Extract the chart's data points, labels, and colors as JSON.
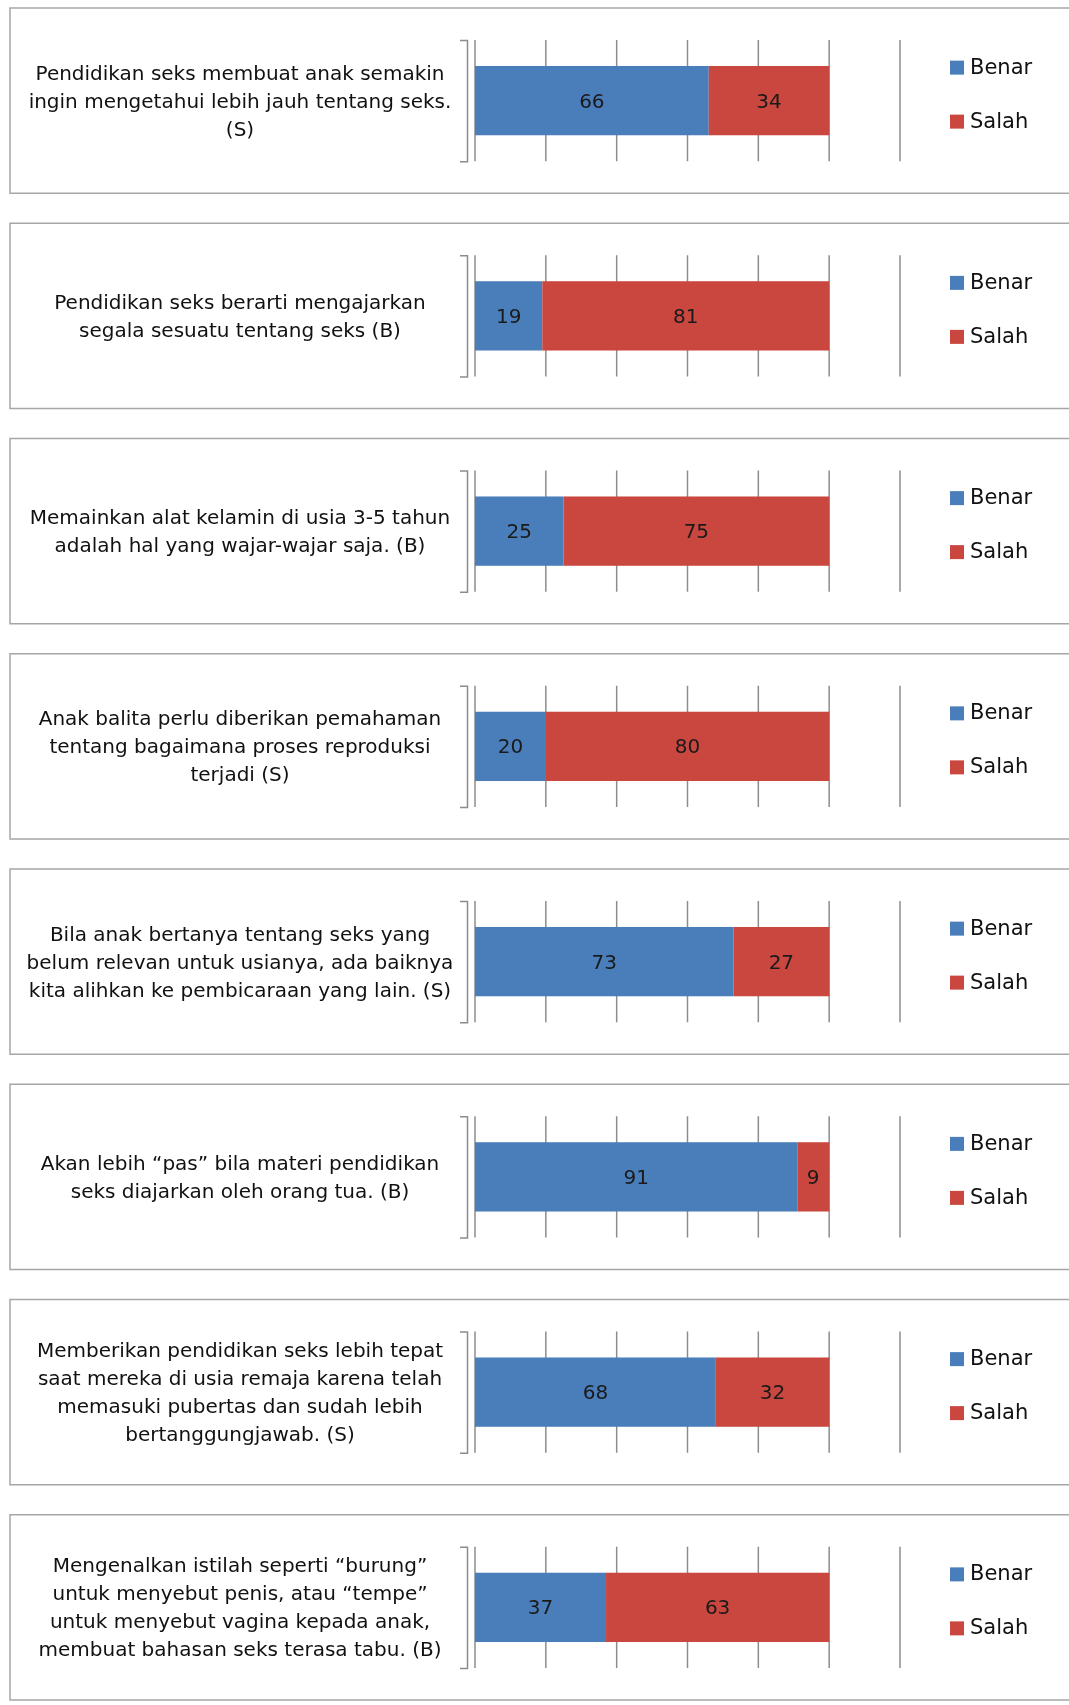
{
  "chart_data": [
    {
      "type": "bar",
      "orientation": "horizontal",
      "stacked": true,
      "categories": [
        "Pendidikan seks membuat anak semakin ingin mengetahui lebih jauh tentang seks. (S)"
      ],
      "series": [
        {
          "name": "Benar",
          "color": "#4a7ebb",
          "values": [
            66
          ]
        },
        {
          "name": "Salah",
          "color": "#c9473f",
          "values": [
            34
          ]
        }
      ],
      "xlim": [
        0,
        120
      ],
      "xticks": [
        {
          "value": 0,
          "label": null
        },
        {
          "value": 20,
          "label": null
        },
        {
          "value": 40,
          "label": null
        },
        {
          "value": 60,
          "label": null
        },
        {
          "value": 80,
          "label": null
        },
        {
          "value": 100,
          "label": null
        },
        {
          "value": 120,
          "label": null
        }
      ],
      "grid": "x",
      "legend": "right",
      "data_labels": true,
      "tick_labels": "y"
    },
    {
      "type": "bar",
      "orientation": "horizontal",
      "stacked": true,
      "categories": [
        "Pendidikan seks berarti mengajarkan segala sesuatu tentang seks (B)"
      ],
      "series": [
        {
          "name": "Benar",
          "color": "#4a7ebb",
          "values": [
            19
          ]
        },
        {
          "name": "Salah",
          "color": "#c9473f",
          "values": [
            81
          ]
        }
      ],
      "xlim": [
        0,
        120
      ],
      "xticks": [
        {
          "value": 0,
          "label": null
        },
        {
          "value": 20,
          "label": null
        },
        {
          "value": 40,
          "label": null
        },
        {
          "value": 60,
          "label": null
        },
        {
          "value": 80,
          "label": null
        },
        {
          "value": 100,
          "label": null
        },
        {
          "value": 120,
          "label": null
        }
      ],
      "grid": "x",
      "legend": "right",
      "data_labels": true,
      "tick_labels": "y"
    },
    {
      "type": "bar",
      "orientation": "horizontal",
      "stacked": true,
      "categories": [
        "Memainkan alat kelamin di usia 3-5 tahun adalah hal yang wajar-wajar saja. (B)"
      ],
      "series": [
        {
          "name": "Benar",
          "color": "#4a7ebb",
          "values": [
            25
          ]
        },
        {
          "name": "Salah",
          "color": "#c9473f",
          "values": [
            75
          ]
        }
      ],
      "xlim": [
        0,
        120
      ],
      "xticks": [
        {
          "value": 0,
          "label": null
        },
        {
          "value": 20,
          "label": null
        },
        {
          "value": 40,
          "label": null
        },
        {
          "value": 60,
          "label": null
        },
        {
          "value": 80,
          "label": null
        },
        {
          "value": 100,
          "label": null
        },
        {
          "value": 120,
          "label": null
        }
      ],
      "grid": "x",
      "legend": "right",
      "data_labels": true,
      "tick_labels": "y"
    },
    {
      "type": "bar",
      "orientation": "horizontal",
      "stacked": true,
      "categories": [
        "Anak balita perlu diberikan pemahaman tentang bagaimana proses reproduksi terjadi (S)"
      ],
      "series": [
        {
          "name": "Benar",
          "color": "#4a7ebb",
          "values": [
            20
          ]
        },
        {
          "name": "Salah",
          "color": "#c9473f",
          "values": [
            80
          ]
        }
      ],
      "xlim": [
        0,
        120
      ],
      "xticks": [
        {
          "value": 0,
          "label": null
        },
        {
          "value": 20,
          "label": null
        },
        {
          "value": 40,
          "label": null
        },
        {
          "value": 60,
          "label": null
        },
        {
          "value": 80,
          "label": null
        },
        {
          "value": 100,
          "label": null
        },
        {
          "value": 120,
          "label": null
        }
      ],
      "grid": "x",
      "legend": "right",
      "data_labels": true,
      "tick_labels": "y"
    },
    {
      "type": "bar",
      "orientation": "horizontal",
      "stacked": true,
      "categories": [
        "Bila anak bertanya tentang seks yang belum relevan untuk usianya, ada baiknya kita alihkan ke pembicaraan yang lain. (S)"
      ],
      "series": [
        {
          "name": "Benar",
          "color": "#4a7ebb",
          "values": [
            73
          ]
        },
        {
          "name": "Salah",
          "color": "#c9473f",
          "values": [
            27
          ]
        }
      ],
      "xlim": [
        0,
        120
      ],
      "xticks": [
        {
          "value": 0,
          "label": null
        },
        {
          "value": 20,
          "label": null
        },
        {
          "value": 40,
          "label": null
        },
        {
          "value": 60,
          "label": null
        },
        {
          "value": 80,
          "label": null
        },
        {
          "value": 100,
          "label": null
        },
        {
          "value": 120,
          "label": null
        }
      ],
      "grid": "x",
      "legend": "right",
      "data_labels": true,
      "tick_labels": "y"
    },
    {
      "type": "bar",
      "orientation": "horizontal",
      "stacked": true,
      "categories": [
        "Akan lebih “pas” bila materi pendidikan seks diajarkan oleh orang tua. (B)"
      ],
      "series": [
        {
          "name": "Benar",
          "color": "#4a7ebb",
          "values": [
            91
          ]
        },
        {
          "name": "Salah",
          "color": "#c9473f",
          "values": [
            9
          ]
        }
      ],
      "xlim": [
        0,
        120
      ],
      "xticks": [
        {
          "value": 0,
          "label": null
        },
        {
          "value": 20,
          "label": null
        },
        {
          "value": 40,
          "label": null
        },
        {
          "value": 60,
          "label": null
        },
        {
          "value": 80,
          "label": null
        },
        {
          "value": 100,
          "label": null
        },
        {
          "value": 120,
          "label": null
        }
      ],
      "grid": "x",
      "legend": "right",
      "data_labels": true,
      "tick_labels": "y"
    },
    {
      "type": "bar",
      "orientation": "horizontal",
      "stacked": true,
      "categories": [
        "Memberikan pendidikan seks lebih tepat saat mereka di usia remaja karena telah memasuki pubertas dan sudah lebih bertanggungjawab. (S)"
      ],
      "series": [
        {
          "name": "Benar",
          "color": "#4a7ebb",
          "values": [
            68
          ]
        },
        {
          "name": "Salah",
          "color": "#c9473f",
          "values": [
            32
          ]
        }
      ],
      "xlim": [
        0,
        120
      ],
      "xticks": [
        {
          "value": 0,
          "label": null
        },
        {
          "value": 20,
          "label": null
        },
        {
          "value": 40,
          "label": null
        },
        {
          "value": 60,
          "label": null
        },
        {
          "value": 80,
          "label": null
        },
        {
          "value": 100,
          "label": null
        },
        {
          "value": 120,
          "label": null
        }
      ],
      "grid": "x",
      "legend": "right",
      "data_labels": true,
      "tick_labels": "y"
    },
    {
      "type": "bar",
      "orientation": "horizontal",
      "stacked": true,
      "categories": [
        "Mengenalkan istilah seperti “burung” untuk menyebut  penis, atau “tempe” untuk menyebut vagina kepada anak, membuat bahasan seks terasa tabu. (B)"
      ],
      "series": [
        {
          "name": "Benar",
          "color": "#4a7ebb",
          "values": [
            37
          ]
        },
        {
          "name": "Salah",
          "color": "#c9473f",
          "values": [
            63
          ]
        }
      ],
      "xlim": [
        0,
        120
      ],
      "xticks": [
        {
          "value": 0,
          "label": null
        },
        {
          "value": 20,
          "label": null
        },
        {
          "value": 40,
          "label": null
        },
        {
          "value": 60,
          "label": null
        },
        {
          "value": 80,
          "label": null
        },
        {
          "value": 100,
          "label": null
        },
        {
          "value": 120,
          "label": null
        }
      ],
      "grid": "x",
      "legend": "right",
      "data_labels": true,
      "tick_labels": "y"
    }
  ]
}
